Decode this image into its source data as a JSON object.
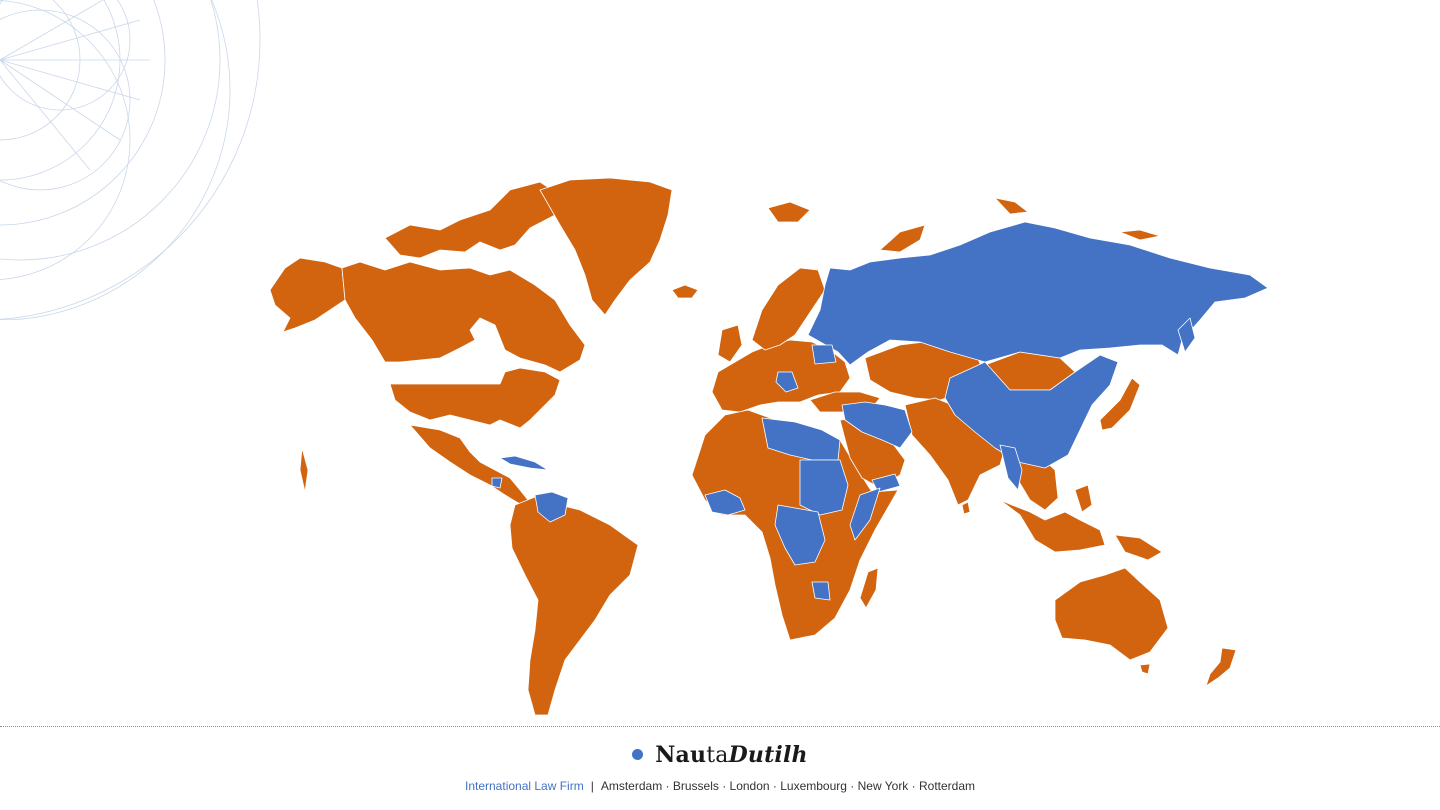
{
  "colors": {
    "highlighted": "#4472c4",
    "default": "#d2640f",
    "background": "#ffffff",
    "border": "#ffffff",
    "brand_dot": "#4472c4"
  },
  "map": {
    "highlighted_regions": [
      "Russia",
      "China",
      "Venezuela",
      "Cuba",
      "Iran",
      "Iraq",
      "Syria",
      "Libya",
      "Egypt",
      "Sudan",
      "South Sudan",
      "Somalia",
      "Central African Republic",
      "Democratic Republic of the Congo",
      "Zimbabwe",
      "Belarus",
      "Myanmar",
      "Guinea",
      "Guinea-Bissau",
      "Liberia",
      "Sierra Leone",
      "Mali",
      "Yemen",
      "Serbia",
      "Bosnia and Herzegovina",
      "Nicaragua"
    ],
    "default_regions": [
      "North America",
      "Greenland",
      "Europe",
      "South America",
      "Africa (rest)",
      "Middle East (rest)",
      "South Asia",
      "Southeast Asia",
      "Australia",
      "New Zealand",
      "Japan",
      "Mongolia"
    ]
  },
  "footer": {
    "logo": {
      "part1": "Nau",
      "part2": "ta",
      "part3": "Du",
      "part4": "tilh"
    },
    "tagline": {
      "label": "International Law Firm",
      "separator": "|",
      "cities": "Amsterdam · Brussels · London · Luxembourg · New York · Rotterdam"
    }
  }
}
